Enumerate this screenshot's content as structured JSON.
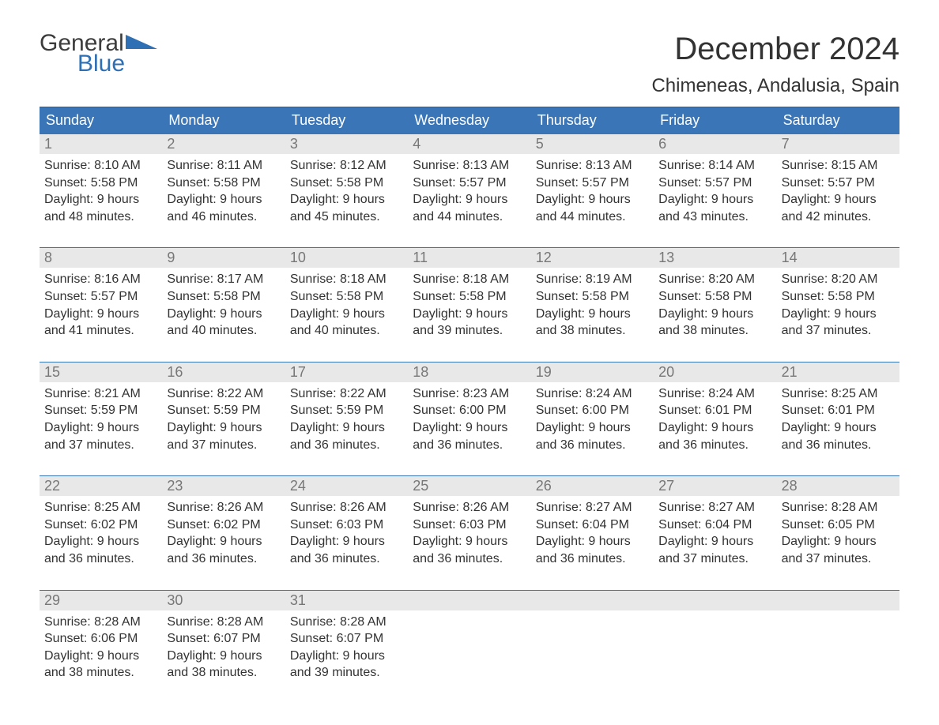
{
  "logo": {
    "general": "General",
    "blue": "Blue"
  },
  "title": "December 2024",
  "location": "Chimeneas, Andalusia, Spain",
  "colors": {
    "header_bg": "#3a76b7",
    "header_border": "#2d5e94",
    "daynum_bg": "#e8e8e8",
    "daynum_color": "#777777",
    "text": "#333333",
    "logo_gray": "#3c3c3c",
    "logo_blue": "#2f6fb4",
    "background": "#ffffff"
  },
  "typography": {
    "title_fontsize": 40,
    "location_fontsize": 24,
    "dow_fontsize": 18,
    "daynum_fontsize": 18,
    "body_fontsize": 16
  },
  "days_of_week": [
    "Sunday",
    "Monday",
    "Tuesday",
    "Wednesday",
    "Thursday",
    "Friday",
    "Saturday"
  ],
  "labels": {
    "sunrise": "Sunrise:",
    "sunset": "Sunset:",
    "daylight": "Daylight:"
  },
  "weeks": [
    [
      {
        "n": "1",
        "sunrise": "8:10 AM",
        "sunset": "5:58 PM",
        "dl1": "9 hours",
        "dl2": "and 48 minutes."
      },
      {
        "n": "2",
        "sunrise": "8:11 AM",
        "sunset": "5:58 PM",
        "dl1": "9 hours",
        "dl2": "and 46 minutes."
      },
      {
        "n": "3",
        "sunrise": "8:12 AM",
        "sunset": "5:58 PM",
        "dl1": "9 hours",
        "dl2": "and 45 minutes."
      },
      {
        "n": "4",
        "sunrise": "8:13 AM",
        "sunset": "5:57 PM",
        "dl1": "9 hours",
        "dl2": "and 44 minutes."
      },
      {
        "n": "5",
        "sunrise": "8:13 AM",
        "sunset": "5:57 PM",
        "dl1": "9 hours",
        "dl2": "and 44 minutes."
      },
      {
        "n": "6",
        "sunrise": "8:14 AM",
        "sunset": "5:57 PM",
        "dl1": "9 hours",
        "dl2": "and 43 minutes."
      },
      {
        "n": "7",
        "sunrise": "8:15 AM",
        "sunset": "5:57 PM",
        "dl1": "9 hours",
        "dl2": "and 42 minutes."
      }
    ],
    [
      {
        "n": "8",
        "sunrise": "8:16 AM",
        "sunset": "5:57 PM",
        "dl1": "9 hours",
        "dl2": "and 41 minutes."
      },
      {
        "n": "9",
        "sunrise": "8:17 AM",
        "sunset": "5:58 PM",
        "dl1": "9 hours",
        "dl2": "and 40 minutes."
      },
      {
        "n": "10",
        "sunrise": "8:18 AM",
        "sunset": "5:58 PM",
        "dl1": "9 hours",
        "dl2": "and 40 minutes."
      },
      {
        "n": "11",
        "sunrise": "8:18 AM",
        "sunset": "5:58 PM",
        "dl1": "9 hours",
        "dl2": "and 39 minutes."
      },
      {
        "n": "12",
        "sunrise": "8:19 AM",
        "sunset": "5:58 PM",
        "dl1": "9 hours",
        "dl2": "and 38 minutes."
      },
      {
        "n": "13",
        "sunrise": "8:20 AM",
        "sunset": "5:58 PM",
        "dl1": "9 hours",
        "dl2": "and 38 minutes."
      },
      {
        "n": "14",
        "sunrise": "8:20 AM",
        "sunset": "5:58 PM",
        "dl1": "9 hours",
        "dl2": "and 37 minutes."
      }
    ],
    [
      {
        "n": "15",
        "sunrise": "8:21 AM",
        "sunset": "5:59 PM",
        "dl1": "9 hours",
        "dl2": "and 37 minutes."
      },
      {
        "n": "16",
        "sunrise": "8:22 AM",
        "sunset": "5:59 PM",
        "dl1": "9 hours",
        "dl2": "and 37 minutes."
      },
      {
        "n": "17",
        "sunrise": "8:22 AM",
        "sunset": "5:59 PM",
        "dl1": "9 hours",
        "dl2": "and 36 minutes."
      },
      {
        "n": "18",
        "sunrise": "8:23 AM",
        "sunset": "6:00 PM",
        "dl1": "9 hours",
        "dl2": "and 36 minutes."
      },
      {
        "n": "19",
        "sunrise": "8:24 AM",
        "sunset": "6:00 PM",
        "dl1": "9 hours",
        "dl2": "and 36 minutes."
      },
      {
        "n": "20",
        "sunrise": "8:24 AM",
        "sunset": "6:01 PM",
        "dl1": "9 hours",
        "dl2": "and 36 minutes."
      },
      {
        "n": "21",
        "sunrise": "8:25 AM",
        "sunset": "6:01 PM",
        "dl1": "9 hours",
        "dl2": "and 36 minutes."
      }
    ],
    [
      {
        "n": "22",
        "sunrise": "8:25 AM",
        "sunset": "6:02 PM",
        "dl1": "9 hours",
        "dl2": "and 36 minutes."
      },
      {
        "n": "23",
        "sunrise": "8:26 AM",
        "sunset": "6:02 PM",
        "dl1": "9 hours",
        "dl2": "and 36 minutes."
      },
      {
        "n": "24",
        "sunrise": "8:26 AM",
        "sunset": "6:03 PM",
        "dl1": "9 hours",
        "dl2": "and 36 minutes."
      },
      {
        "n": "25",
        "sunrise": "8:26 AM",
        "sunset": "6:03 PM",
        "dl1": "9 hours",
        "dl2": "and 36 minutes."
      },
      {
        "n": "26",
        "sunrise": "8:27 AM",
        "sunset": "6:04 PM",
        "dl1": "9 hours",
        "dl2": "and 36 minutes."
      },
      {
        "n": "27",
        "sunrise": "8:27 AM",
        "sunset": "6:04 PM",
        "dl1": "9 hours",
        "dl2": "and 37 minutes."
      },
      {
        "n": "28",
        "sunrise": "8:28 AM",
        "sunset": "6:05 PM",
        "dl1": "9 hours",
        "dl2": "and 37 minutes."
      }
    ],
    [
      {
        "n": "29",
        "sunrise": "8:28 AM",
        "sunset": "6:06 PM",
        "dl1": "9 hours",
        "dl2": "and 38 minutes."
      },
      {
        "n": "30",
        "sunrise": "8:28 AM",
        "sunset": "6:07 PM",
        "dl1": "9 hours",
        "dl2": "and 38 minutes."
      },
      {
        "n": "31",
        "sunrise": "8:28 AM",
        "sunset": "6:07 PM",
        "dl1": "9 hours",
        "dl2": "and 39 minutes."
      },
      null,
      null,
      null,
      null
    ]
  ]
}
